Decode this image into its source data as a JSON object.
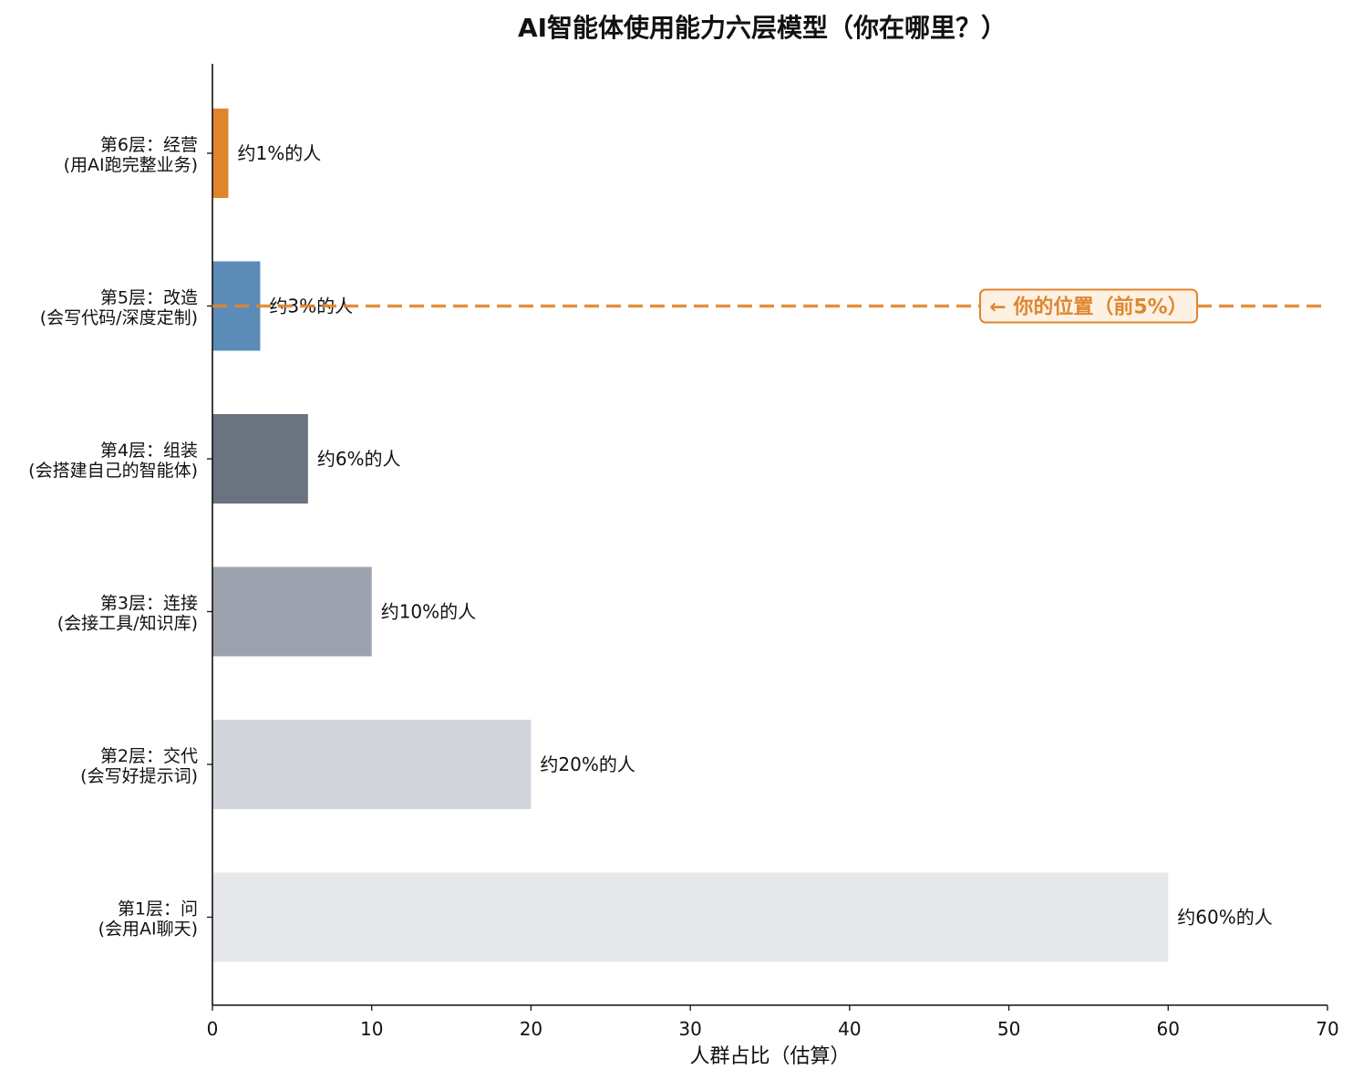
{
  "chart_data": {
    "type": "bar",
    "orientation": "horizontal",
    "title": "AI智能体使用能力六层模型（你在哪里？）",
    "xlabel": "人群占比（估算）",
    "ylabel": "",
    "xlim": [
      0,
      70
    ],
    "xticks": [
      0,
      10,
      20,
      30,
      40,
      50,
      60,
      70
    ],
    "grid": false,
    "categories": [
      {
        "line1": "第6层：经营",
        "line2": "(用AI跑完整业务)"
      },
      {
        "line1": "第5层：改造",
        "line2": "(会写代码/深度定制)"
      },
      {
        "line1": "第4层：组装",
        "line2": "(会搭建自己的智能体)"
      },
      {
        "line1": "第3层：连接",
        "line2": "(会接工具/知识库)"
      },
      {
        "line1": "第2层：交代",
        "line2": "(会写好提示词)"
      },
      {
        "line1": "第1层：问",
        "line2": "(会用AI聊天)"
      }
    ],
    "values": [
      1,
      3,
      6,
      10,
      20,
      60
    ],
    "data_labels": [
      "约1%的人",
      "约3%的人",
      "约6%的人",
      "约10%的人",
      "约20%的人",
      "约60%的人"
    ],
    "bar_colors": [
      "#df862d",
      "#5b8cb8",
      "#6b7280",
      "#9ca3af",
      "#d1d5db",
      "#e5e7eb"
    ],
    "highlight": {
      "category_index": 1,
      "line_style": "dashed",
      "color": "#df862d",
      "label": "← 你的位置（前5%）",
      "label_background": "#fdf1e3"
    }
  }
}
